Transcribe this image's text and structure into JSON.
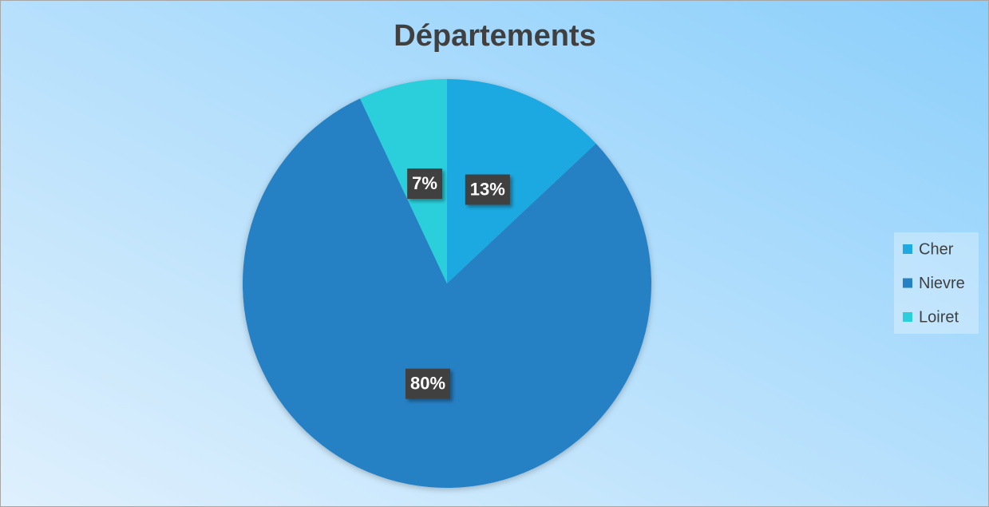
{
  "chart_data": {
    "type": "pie",
    "title": "Départements",
    "categories": [
      "Cher",
      "Nievre",
      "Loiret"
    ],
    "values": [
      13,
      80,
      7
    ],
    "value_labels": [
      "13%",
      "80%",
      "7%"
    ],
    "colors": [
      "#1fa9e1",
      "#2580c4",
      "#2bcfdb"
    ],
    "legend": "right"
  }
}
